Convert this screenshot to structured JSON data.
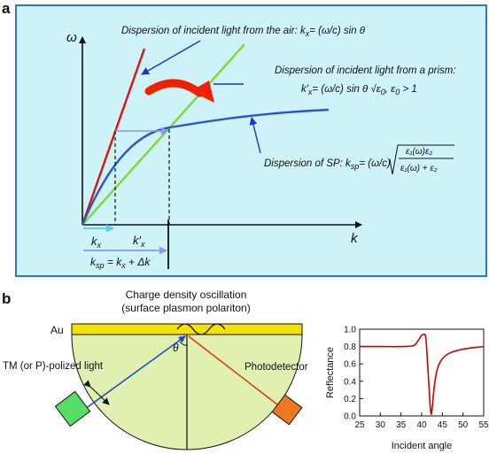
{
  "panel_a": {
    "label": "a",
    "axis_y": "ω",
    "axis_x": "k",
    "air_caption": "Dispersion of incident light from the air: k",
    "air_formula": "= (ω/c) sin θ",
    "air_sub": "x",
    "prism_caption": "Dispersion of incident light from a prism:",
    "prism_formula_lhs": "k′",
    "prism_formula_sub": "x",
    "prism_formula_rhs": "= (ω/c) sin θ √ε",
    "prism_formula_tail": ", ε",
    "prism_formula_end": " > 1",
    "prism_eps_sub": "0",
    "sp_caption": "Dispersion of SP: k",
    "sp_caption_sub": "sp",
    "sp_formula_num": "ε₁(ω)ε₂",
    "sp_formula_den": "ε₁(ω) + ε₂",
    "sp_formula_pre": "= (ω/c)",
    "kx_label": "k",
    "kx_sub": "x",
    "kx_prime_label": "k′",
    "kx_prime_sub": "x",
    "ksp_label": "k",
    "ksp_sub": "sp",
    "ksp_eq": " = k",
    "ksp_eq_sub": "x",
    "ksp_tail": " + Δk"
  },
  "panel_b": {
    "label": "b",
    "title_line1": "Charge density oscillation",
    "title_line2": "(surface plasmon polariton)",
    "au_label": "Au",
    "theta": "θ",
    "source_label": "TM (or P)-polized light",
    "detector_label": "Photodetector"
  },
  "chart_data": {
    "type": "line",
    "title": "",
    "xlabel": "Incident angle",
    "ylabel": "Reflectance",
    "xlim": [
      25,
      55
    ],
    "ylim": [
      0,
      1.0
    ],
    "xticks": [
      25,
      30,
      35,
      40,
      45,
      50,
      55
    ],
    "yticks": [
      0.0,
      0.2,
      0.4,
      0.6,
      0.8,
      1.0
    ],
    "x": [
      25,
      30,
      35,
      38,
      39,
      40,
      40.5,
      41,
      41.5,
      42,
      42.3,
      42.6,
      43,
      43.5,
      44,
      45,
      47,
      50,
      53,
      55
    ],
    "y": [
      0.8,
      0.8,
      0.8,
      0.81,
      0.86,
      0.93,
      0.94,
      0.9,
      0.55,
      0.15,
      0.02,
      0.12,
      0.32,
      0.48,
      0.57,
      0.66,
      0.73,
      0.77,
      0.79,
      0.8
    ],
    "line_color": "#cc0000",
    "grid": false
  },
  "colors": {
    "panel_a_bg": "#cdf2f7",
    "panel_a_border": "#2a78c8",
    "air_line": "#dd1111",
    "prism_line": "#77dd33",
    "sp_curve": "#2a55cc",
    "bend_arrow": "#ee2200",
    "pointer": "#1a33cc",
    "k_arrow": "#55ccee",
    "au": "#f3e100",
    "prism": "#dff0b0",
    "source": "#55dd66",
    "detector": "#ee7722",
    "incident_ray": "#2244cc",
    "reflected_ray": "#ee3300"
  }
}
